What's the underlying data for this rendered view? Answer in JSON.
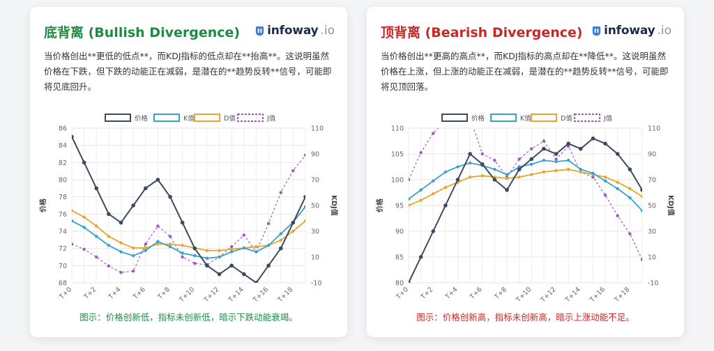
{
  "panels": [
    {
      "title": "底背离 (Bullish Divergence)",
      "brand": {
        "name": "infoway",
        "suffix": ".io"
      },
      "description": "当价格创出**更低的低点**，而KDJ指标的低点却在**抬高**。这说明虽然价格在下跌，但下跌的动能正在减弱，是潜在的**趋势反转**信号，可能即将见底回升。",
      "caption": "图示：价格创新低，指标未创新低，暗示下跌动能衰竭。"
    },
    {
      "title": "顶背离 (Bearish Divergence)",
      "brand": {
        "name": "infoway",
        "suffix": ".io"
      },
      "description": "当价格创出**更高的高点**，而KDJ指标的高点却在**降低**。这说明虽然价格在上涨，但上涨的动能正在减弱，是潜在的**趋势反转**信号，可能即将见顶回落。",
      "caption": "图示：价格创新高，指标未创新高，暗示上涨动能不足。"
    }
  ],
  "colors": {
    "price": "#3b4a5e",
    "k": "#3aa0d0",
    "d": "#e8a52a",
    "j": "#a058c0",
    "bullish": "#1f8a43",
    "bearish": "#c62828"
  },
  "chart_data": [
    {
      "type": "line",
      "x": [
        "T+0",
        "T+1",
        "T+2",
        "T+3",
        "T+4",
        "T+5",
        "T+6",
        "T+7",
        "T+8",
        "T+9",
        "T+10",
        "T+11",
        "T+12",
        "T+13",
        "T+14",
        "T+15",
        "T+16",
        "T+17",
        "T+18",
        "T+19"
      ],
      "x_tick_labels": [
        "T+0",
        "T+2",
        "T+4",
        "T+6",
        "T+8",
        "T+10",
        "T+12",
        "T+14",
        "T+16",
        "T+18"
      ],
      "ylabel": "价格",
      "y2label": "KDJ值",
      "ylim": [
        68,
        86
      ],
      "y_ticks": [
        68,
        70,
        72,
        74,
        76,
        78,
        80,
        82,
        84,
        86
      ],
      "y2lim": [
        -10,
        110
      ],
      "y2_ticks": [
        -10,
        10,
        30,
        50,
        70,
        90,
        110
      ],
      "grid": true,
      "legend": "top-center",
      "series": [
        {
          "name": "价格",
          "axis": "left",
          "style": "solid",
          "values": [
            85,
            82,
            79,
            76,
            75,
            77,
            79,
            80,
            78,
            75,
            72,
            70,
            69,
            70,
            69,
            68,
            70,
            72,
            75,
            78
          ]
        },
        {
          "name": "K值",
          "axis": "right",
          "style": "solid",
          "values": [
            38,
            33,
            26,
            19,
            14,
            11,
            15,
            22,
            18,
            13,
            11,
            9,
            10,
            14,
            17,
            14,
            19,
            28,
            37,
            49
          ]
        },
        {
          "name": "D值",
          "axis": "right",
          "style": "solid",
          "values": [
            46,
            41,
            34,
            26,
            21,
            17,
            17,
            20,
            20,
            19,
            17,
            15,
            15,
            16,
            17,
            18,
            19,
            23,
            30,
            38
          ]
        },
        {
          "name": "J值",
          "axis": "right",
          "style": "dashed",
          "values": [
            20,
            16,
            10,
            3,
            -2,
            -1,
            20,
            34,
            26,
            10,
            5,
            4,
            10,
            18,
            27,
            14,
            36,
            60,
            77,
            89
          ]
        }
      ]
    },
    {
      "type": "line",
      "x": [
        "T+0",
        "T+1",
        "T+2",
        "T+3",
        "T+4",
        "T+5",
        "T+6",
        "T+7",
        "T+8",
        "T+9",
        "T+10",
        "T+11",
        "T+12",
        "T+13",
        "T+14",
        "T+15",
        "T+16",
        "T+17",
        "T+18",
        "T+19"
      ],
      "x_tick_labels": [
        "T+0",
        "T+2",
        "T+4",
        "T+6",
        "T+8",
        "T+10",
        "T+12",
        "T+14",
        "T+16",
        "T+18"
      ],
      "ylabel": "价格",
      "y2label": "KDJ值",
      "ylim": [
        80,
        110
      ],
      "y_ticks": [
        80,
        85,
        90,
        95,
        100,
        105,
        110
      ],
      "y2lim": [
        -10,
        110
      ],
      "y2_ticks": [
        -10,
        10,
        30,
        50,
        70,
        90,
        110
      ],
      "grid": true,
      "legend": "top-center",
      "series": [
        {
          "name": "价格",
          "axis": "left",
          "style": "solid",
          "values": [
            80,
            85,
            90,
            95,
            100,
            105,
            103,
            100,
            98,
            102,
            104,
            106,
            105,
            107,
            106,
            108,
            107,
            105,
            102,
            98
          ]
        },
        {
          "name": "K值",
          "axis": "right",
          "style": "solid",
          "values": [
            55,
            62,
            69,
            76,
            80,
            83,
            81,
            78,
            74,
            80,
            82,
            85,
            84,
            85,
            78,
            75,
            69,
            63,
            56,
            46
          ]
        },
        {
          "name": "D值",
          "axis": "right",
          "style": "solid",
          "values": [
            50,
            54,
            59,
            64,
            68,
            72,
            73,
            72,
            71,
            72,
            74,
            76,
            77,
            78,
            76,
            74,
            72,
            68,
            63,
            57
          ]
        },
        {
          "name": "J值",
          "axis": "right",
          "style": "dashed",
          "values": [
            70,
            91,
            106,
            116,
            120,
            118,
            90,
            85,
            72,
            86,
            94,
            100,
            86,
            96,
            76,
            72,
            58,
            42,
            28,
            8
          ]
        }
      ]
    }
  ]
}
